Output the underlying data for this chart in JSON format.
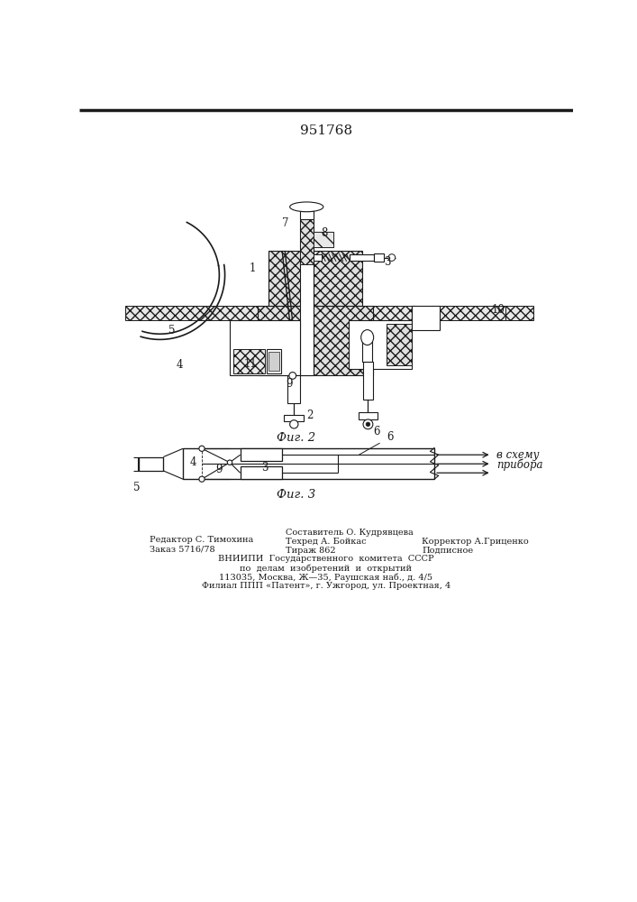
{
  "title": "951768",
  "title_fontsize": 11,
  "bg_color": "#ffffff",
  "line_color": "#1a1a1a",
  "fig2_caption": "Фиг. 2",
  "fig3_caption": "Фиг. 3",
  "footer_left": [
    "Редактор С. Тимохина",
    "Заказ 5716/78"
  ],
  "footer_center_top": [
    "Составитель О. Кудрявцева",
    "Техред А. Бойкас",
    "Тираж 862"
  ],
  "footer_right": [
    "Корректор А.Гриценко",
    "Подписное"
  ],
  "footer_center_bottom": [
    "ВНИИПИ  Государственного  комитета  СССР",
    "по  делам  изобретений  и  открытий",
    "113035, Москва, Ж—35, Раушская наб., д. 4/5",
    "Филиал ППП «Патент», г. Ужгород, ул. Проектная, 4"
  ]
}
